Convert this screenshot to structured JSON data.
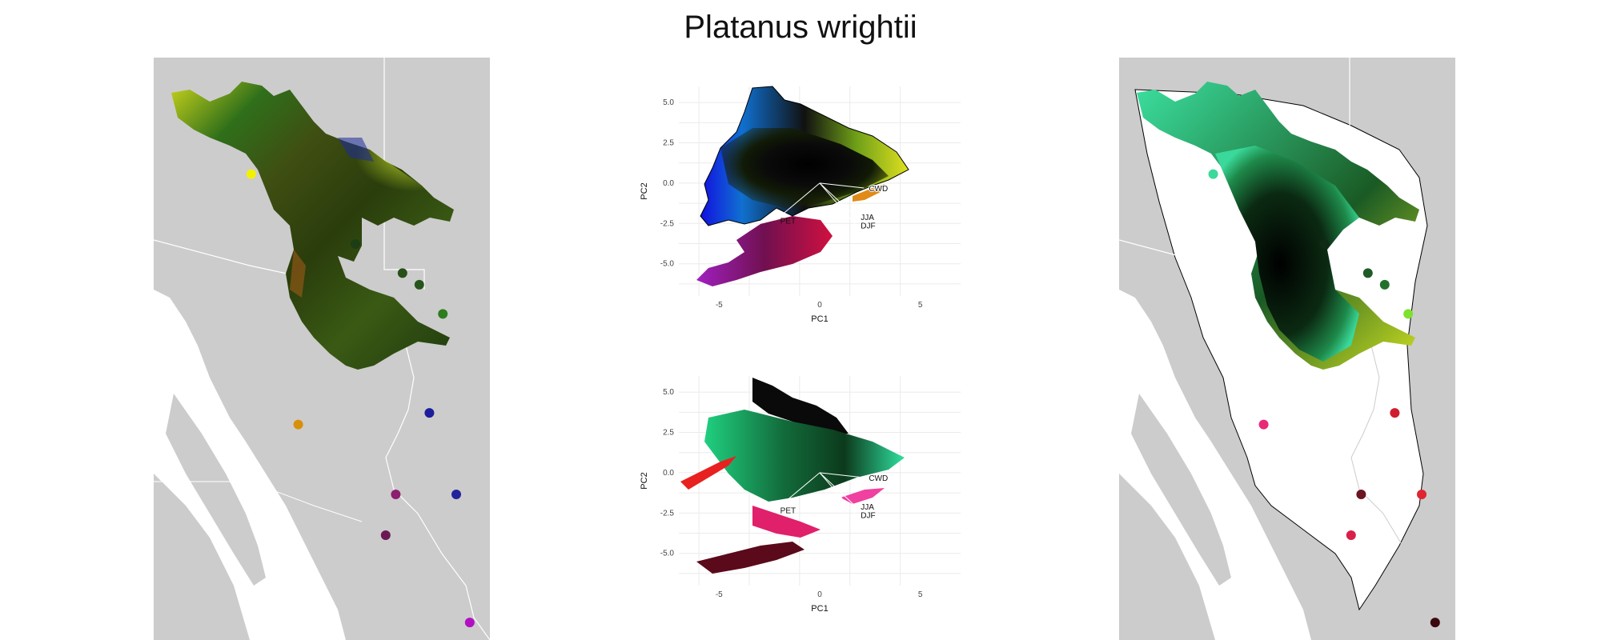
{
  "title": "Platanus wrightii",
  "chart_data": [
    {
      "type": "scatter",
      "panel": "pca-top",
      "xlabel": "PC1",
      "ylabel": "PC2",
      "xlim": [
        -7,
        7
      ],
      "ylim": [
        -7,
        6
      ],
      "xticks": [
        -5,
        0,
        5
      ],
      "yticks": [
        5.0,
        2.5,
        0.0,
        -2.5,
        -5.0
      ],
      "ytick_labels": [
        "5.0",
        "2.5",
        "0.0",
        "-2.5",
        "-5.0"
      ],
      "grid": true,
      "vectors": [
        {
          "label": "CWD",
          "x": 2.2,
          "y": -0.3
        },
        {
          "label": "PET",
          "x": -2.2,
          "y": -2.3
        },
        {
          "label": "JJA",
          "x": 1.8,
          "y": -2.1
        },
        {
          "label": "DJF",
          "x": 1.8,
          "y": -2.6
        }
      ]
    },
    {
      "type": "scatter",
      "panel": "pca-bottom",
      "xlabel": "PC1",
      "ylabel": "PC2",
      "xlim": [
        -7,
        7
      ],
      "ylim": [
        -7,
        6
      ],
      "xticks": [
        -5,
        0,
        5
      ],
      "yticks": [
        5.0,
        2.5,
        0.0,
        -2.5,
        -5.0
      ],
      "ytick_labels": [
        "5.0",
        "2.5",
        "0.0",
        "-2.5",
        "-5.0"
      ],
      "grid": true,
      "vectors": [
        {
          "label": "CWD",
          "x": 2.2,
          "y": -0.3
        },
        {
          "label": "PET",
          "x": -2.2,
          "y": -2.3
        },
        {
          "label": "JJA",
          "x": 1.8,
          "y": -2.1
        },
        {
          "label": "DJF",
          "x": 1.8,
          "y": -2.6
        }
      ]
    }
  ],
  "map_left": {
    "points": [
      {
        "x": 0.29,
        "y": 0.2,
        "color": "#f2f200"
      },
      {
        "x": 0.6,
        "y": 0.32,
        "color": "#1d3d14"
      },
      {
        "x": 0.74,
        "y": 0.37,
        "color": "#284f1a"
      },
      {
        "x": 0.79,
        "y": 0.39,
        "color": "#27541b"
      },
      {
        "x": 0.86,
        "y": 0.44,
        "color": "#2d7d1c"
      },
      {
        "x": 0.43,
        "y": 0.63,
        "color": "#d8900a"
      },
      {
        "x": 0.82,
        "y": 0.61,
        "color": "#1c1e9c"
      },
      {
        "x": 0.72,
        "y": 0.75,
        "color": "#8c1f6e"
      },
      {
        "x": 0.9,
        "y": 0.75,
        "color": "#23239c"
      },
      {
        "x": 0.69,
        "y": 0.82,
        "color": "#6b1954"
      },
      {
        "x": 0.94,
        "y": 0.97,
        "color": "#b010c2"
      }
    ]
  },
  "map_right": {
    "points": [
      {
        "x": 0.28,
        "y": 0.2,
        "color": "#3bd99a"
      },
      {
        "x": 0.61,
        "y": 0.32,
        "color": "#0f2a16"
      },
      {
        "x": 0.74,
        "y": 0.37,
        "color": "#1f5a27"
      },
      {
        "x": 0.79,
        "y": 0.39,
        "color": "#22702c"
      },
      {
        "x": 0.86,
        "y": 0.44,
        "color": "#7ee030"
      },
      {
        "x": 0.43,
        "y": 0.63,
        "color": "#e82a78"
      },
      {
        "x": 0.82,
        "y": 0.61,
        "color": "#d01e2e"
      },
      {
        "x": 0.72,
        "y": 0.75,
        "color": "#6b1422"
      },
      {
        "x": 0.9,
        "y": 0.75,
        "color": "#e02430"
      },
      {
        "x": 0.69,
        "y": 0.82,
        "color": "#d8204a"
      },
      {
        "x": 0.94,
        "y": 0.97,
        "color": "#3b0a0e"
      }
    ]
  }
}
